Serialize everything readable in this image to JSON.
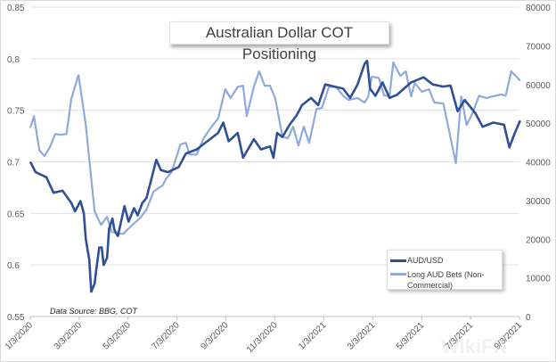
{
  "chart_data": {
    "type": "line",
    "title": "Australian Dollar COT Positioning",
    "source_note": "Data Source: BBG, COT",
    "watermark": "WikiFX",
    "x_unit": "months since 1/3/2020",
    "xlim": [
      0,
      20
    ],
    "x_ticks": [
      {
        "m": 0,
        "label": "1/3/2020"
      },
      {
        "m": 2,
        "label": "3/3/2020"
      },
      {
        "m": 4,
        "label": "5/3/2020"
      },
      {
        "m": 6,
        "label": "7/3/2020"
      },
      {
        "m": 8,
        "label": "9/3/2020"
      },
      {
        "m": 10,
        "label": "11/3/2020"
      },
      {
        "m": 12,
        "label": "1/3/2021"
      },
      {
        "m": 14,
        "label": "3/3/2021"
      },
      {
        "m": 16,
        "label": "5/3/2021"
      },
      {
        "m": 18,
        "label": "7/3/2021"
      },
      {
        "m": 20,
        "label": "9/3/2021"
      }
    ],
    "y_left": {
      "lim": [
        0.55,
        0.85
      ],
      "ticks": [
        "0.55",
        "0.6",
        "0.65",
        "0.7",
        "0.75",
        "0.8",
        "0.85"
      ]
    },
    "y_right": {
      "lim": [
        0,
        80000
      ],
      "ticks": [
        "0",
        "10000",
        "20000",
        "30000",
        "40000",
        "50000",
        "60000",
        "70000",
        "80000"
      ]
    },
    "grid": true,
    "legend_position": "bottom-right",
    "series": [
      {
        "name": "AUD/USD",
        "axis": "left",
        "color": "#2f4f96",
        "x": [
          0,
          0.22,
          0.66,
          0.95,
          1.32,
          1.68,
          1.83,
          2.05,
          2.19,
          2.27,
          2.41,
          2.49,
          2.63,
          2.7,
          2.82,
          2.92,
          3.0,
          3.14,
          3.22,
          3.36,
          3.44,
          3.58,
          3.85,
          4.02,
          4.24,
          4.39,
          4.58,
          4.75,
          4.97,
          5.15,
          5.34,
          5.63,
          6.07,
          6.36,
          6.8,
          7.24,
          7.68,
          7.89,
          8.11,
          8.48,
          8.7,
          9.14,
          9.43,
          9.8,
          9.94,
          10.09,
          10.31,
          10.6,
          10.89,
          11.11,
          11.48,
          11.77,
          12.06,
          12.43,
          12.79,
          13.08,
          13.38,
          13.67,
          13.77,
          13.89,
          14.11,
          14.4,
          14.69,
          14.99,
          15.28,
          15.57,
          16.08,
          16.45,
          16.89,
          17.18,
          17.47,
          17.76,
          18.2,
          18.49,
          18.93,
          19.37,
          19.59,
          19.81,
          20.03
        ],
        "y": [
          0.7,
          0.69,
          0.685,
          0.67,
          0.672,
          0.66,
          0.652,
          0.662,
          0.65,
          0.625,
          0.605,
          0.574,
          0.582,
          0.596,
          0.617,
          0.617,
          0.6,
          0.607,
          0.635,
          0.645,
          0.634,
          0.628,
          0.657,
          0.642,
          0.655,
          0.648,
          0.66,
          0.665,
          0.685,
          0.702,
          0.692,
          0.69,
          0.695,
          0.708,
          0.712,
          0.72,
          0.728,
          0.738,
          0.72,
          0.728,
          0.704,
          0.722,
          0.712,
          0.715,
          0.704,
          0.728,
          0.724,
          0.736,
          0.745,
          0.755,
          0.762,
          0.755,
          0.775,
          0.773,
          0.771,
          0.762,
          0.775,
          0.795,
          0.798,
          0.771,
          0.764,
          0.777,
          0.762,
          0.765,
          0.771,
          0.777,
          0.782,
          0.775,
          0.773,
          0.774,
          0.749,
          0.76,
          0.747,
          0.734,
          0.738,
          0.736,
          0.714,
          0.728,
          0.74
        ]
      },
      {
        "name": "Long AUD Bets (Non-Commercial)",
        "axis": "right",
        "color": "#8eaadb",
        "x": [
          0,
          0.15,
          0.37,
          0.58,
          0.8,
          1.02,
          1.24,
          1.48,
          1.68,
          1.97,
          2.27,
          2.49,
          2.63,
          2.89,
          3.14,
          3.33,
          3.65,
          3.8,
          4.17,
          4.46,
          4.75,
          5.04,
          5.41,
          5.56,
          5.77,
          6.14,
          6.36,
          6.51,
          6.8,
          7.09,
          7.38,
          7.68,
          7.97,
          8.19,
          8.48,
          8.7,
          8.85,
          9.14,
          9.36,
          9.58,
          9.8,
          10.01,
          10.31,
          10.53,
          10.75,
          10.96,
          11.18,
          11.4,
          11.7,
          11.92,
          12.21,
          12.5,
          12.79,
          13.01,
          13.38,
          13.67,
          13.82,
          13.96,
          14.25,
          14.47,
          14.69,
          14.84,
          15.13,
          15.35,
          15.57,
          15.72,
          16.01,
          16.3,
          16.52,
          16.89,
          17.4,
          17.62,
          17.84,
          18.06,
          18.35,
          18.64,
          19.23,
          19.44,
          19.66,
          20.03
        ],
        "y": [
          48800,
          51800,
          43000,
          41500,
          43800,
          47200,
          47000,
          47200,
          56400,
          62400,
          49500,
          35700,
          27200,
          23700,
          25800,
          21900,
          21400,
          21400,
          23700,
          25300,
          27600,
          32300,
          33900,
          35700,
          37300,
          44500,
          44900,
          41900,
          41900,
          46100,
          48800,
          51200,
          58800,
          56500,
          59400,
          59700,
          51800,
          59400,
          63400,
          59700,
          59700,
          56500,
          46500,
          46100,
          49100,
          44200,
          49100,
          44900,
          53700,
          53900,
          59400,
          59400,
          57100,
          56000,
          56500,
          55300,
          56900,
          62000,
          61700,
          57100,
          57100,
          65700,
          62200,
          63400,
          56900,
          60400,
          58100,
          58800,
          55300,
          55100,
          39600,
          56900,
          49500,
          52300,
          57100,
          56500,
          57400,
          57100,
          63400,
          61000
        ]
      }
    ]
  }
}
